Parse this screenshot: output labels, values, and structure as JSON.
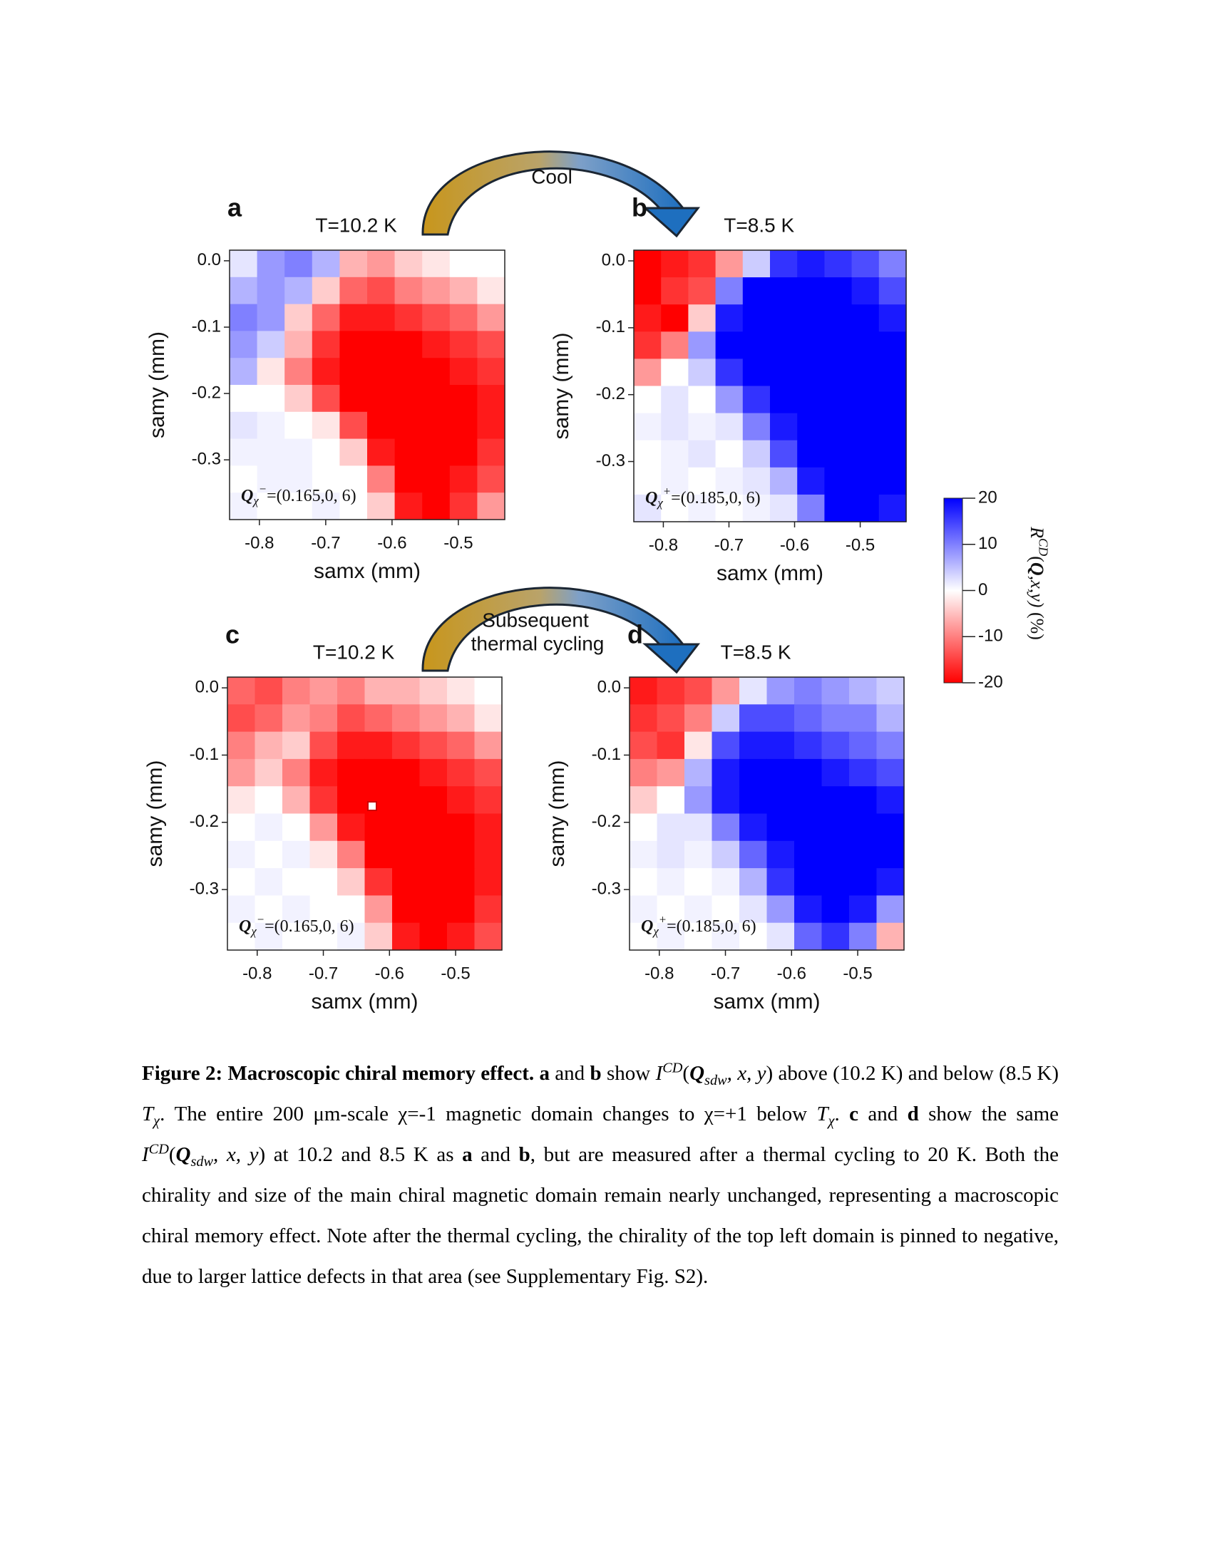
{
  "figure": {
    "panels": [
      {
        "label": "a",
        "title": "T=10.2 K",
        "xlabel": "samx (mm)",
        "ylabel": "samy (mm)",
        "xlim": [
          -0.845,
          -0.43
        ],
        "ylim": [
          -0.39,
          0.016
        ],
        "xticks": [
          -0.8,
          -0.7,
          -0.6,
          -0.5
        ],
        "yticks": [
          {
            "value": 0,
            "label": "0.0"
          },
          -0.1,
          -0.2,
          -0.3
        ],
        "annotation": [
          {
            "t": "Q",
            "f": "bi"
          },
          {
            "t": "χ",
            "f": "sub"
          },
          {
            "t": "−",
            "f": "sup"
          },
          {
            "t": "=(0.165,0, 6)"
          }
        ],
        "grid": [
          [
            2,
            8,
            10,
            6,
            -6,
            -8,
            -4,
            -2,
            0,
            0
          ],
          [
            6,
            8,
            6,
            -4,
            -12,
            -14,
            -10,
            -8,
            -6,
            -2
          ],
          [
            10,
            8,
            -4,
            -12,
            -18,
            -18,
            -16,
            -14,
            -12,
            -8
          ],
          [
            8,
            4,
            -6,
            -16,
            -20,
            -20,
            -20,
            -18,
            -16,
            -14
          ],
          [
            6,
            -2,
            -10,
            -18,
            -20,
            -20,
            -20,
            -20,
            -18,
            -16
          ],
          [
            0,
            0,
            -4,
            -14,
            -20,
            -20,
            -20,
            -20,
            -20,
            -18
          ],
          [
            2,
            1,
            0,
            -2,
            -14,
            -20,
            -20,
            -20,
            -20,
            -18
          ],
          [
            1,
            1,
            1,
            0,
            -4,
            -18,
            -20,
            -20,
            -20,
            -16
          ],
          [
            0,
            1,
            1,
            0,
            0,
            -10,
            -20,
            -20,
            -18,
            -14
          ],
          [
            1,
            0,
            0,
            1,
            0,
            -4,
            -18,
            -20,
            -16,
            -8
          ]
        ]
      },
      {
        "label": "b",
        "title": "T=8.5 K",
        "xlabel": "samx (mm)",
        "ylabel": "samy (mm)",
        "xlim": [
          -0.845,
          -0.43
        ],
        "ylim": [
          -0.39,
          0.016
        ],
        "xticks": [
          -0.8,
          -0.7,
          -0.6,
          -0.5
        ],
        "yticks": [
          {
            "value": 0,
            "label": "0.0"
          },
          -0.1,
          -0.2,
          -0.3
        ],
        "annotation": [
          {
            "t": "Q",
            "f": "bi"
          },
          {
            "t": "χ",
            "f": "sub"
          },
          {
            "t": "+",
            "f": "sup"
          },
          {
            "t": "=(0.185,0, 6)"
          }
        ],
        "grid": [
          [
            -20,
            -18,
            -16,
            -8,
            4,
            16,
            18,
            16,
            14,
            10
          ],
          [
            -20,
            -16,
            -14,
            10,
            20,
            20,
            20,
            20,
            18,
            14
          ],
          [
            -18,
            -20,
            -4,
            18,
            20,
            20,
            20,
            20,
            20,
            18
          ],
          [
            -16,
            -10,
            8,
            20,
            20,
            20,
            20,
            20,
            20,
            20
          ],
          [
            -8,
            0,
            4,
            16,
            20,
            20,
            20,
            20,
            20,
            20
          ],
          [
            0,
            2,
            0,
            8,
            16,
            20,
            20,
            20,
            20,
            20
          ],
          [
            1,
            2,
            1,
            2,
            10,
            18,
            20,
            20,
            20,
            20
          ],
          [
            0,
            1,
            2,
            0,
            4,
            14,
            20,
            20,
            20,
            20
          ],
          [
            0,
            1,
            0,
            1,
            2,
            6,
            18,
            20,
            20,
            20
          ],
          [
            2,
            0,
            1,
            0,
            1,
            2,
            10,
            20,
            20,
            18
          ]
        ]
      },
      {
        "label": "c",
        "title": "T=10.2 K",
        "xlabel": "samx (mm)",
        "ylabel": "samy (mm)",
        "xlim": [
          -0.845,
          -0.43
        ],
        "ylim": [
          -0.39,
          0.016
        ],
        "xticks": [
          -0.8,
          -0.7,
          -0.6,
          -0.5
        ],
        "yticks": [
          {
            "value": 0,
            "label": "0.0"
          },
          -0.1,
          -0.2,
          -0.3
        ],
        "annotation": [
          {
            "t": "Q",
            "f": "bi"
          },
          {
            "t": "χ",
            "f": "sub"
          },
          {
            "t": "−",
            "f": "sup"
          },
          {
            "t": "=(0.165,0, 6)"
          }
        ],
        "grid": [
          [
            -12,
            -14,
            -10,
            -8,
            -10,
            -6,
            -6,
            -4,
            -2,
            0
          ],
          [
            -14,
            -12,
            -8,
            -10,
            -14,
            -12,
            -10,
            -8,
            -6,
            -2
          ],
          [
            -10,
            -6,
            -4,
            -14,
            -18,
            -18,
            -16,
            -14,
            -12,
            -8
          ],
          [
            -8,
            -4,
            -10,
            -18,
            -20,
            -20,
            -20,
            -18,
            -16,
            -14
          ],
          [
            -2,
            0,
            -6,
            -16,
            -20,
            -20,
            -20,
            -20,
            -18,
            -16
          ],
          [
            0,
            1,
            0,
            -8,
            -18,
            -20,
            -20,
            -20,
            -20,
            -18
          ],
          [
            1,
            0,
            1,
            -2,
            -10,
            -20,
            -20,
            -20,
            -20,
            -18
          ],
          [
            0,
            1,
            0,
            0,
            -4,
            -16,
            -20,
            -20,
            -20,
            -18
          ],
          [
            1,
            0,
            1,
            0,
            0,
            -8,
            -20,
            -20,
            -20,
            -16
          ],
          [
            0,
            1,
            0,
            0,
            1,
            -4,
            -18,
            -20,
            -18,
            -14
          ]
        ]
      },
      {
        "label": "d",
        "title": "T=8.5 K",
        "xlabel": "samx (mm)",
        "ylabel": "samy (mm)",
        "xlim": [
          -0.845,
          -0.43
        ],
        "ylim": [
          -0.39,
          0.016
        ],
        "xticks": [
          -0.8,
          -0.7,
          -0.6,
          -0.5
        ],
        "yticks": [
          {
            "value": 0,
            "label": "0.0"
          },
          -0.1,
          -0.2,
          -0.3
        ],
        "annotation": [
          {
            "t": "Q",
            "f": "bi"
          },
          {
            "t": "χ",
            "f": "sub"
          },
          {
            "t": "+",
            "f": "sup"
          },
          {
            "t": "=(0.185,0, 6)"
          }
        ],
        "grid": [
          [
            -18,
            -16,
            -14,
            -8,
            2,
            8,
            10,
            8,
            6,
            4
          ],
          [
            -16,
            -14,
            -10,
            4,
            14,
            14,
            12,
            10,
            10,
            6
          ],
          [
            -14,
            -16,
            -2,
            14,
            18,
            18,
            16,
            14,
            12,
            10
          ],
          [
            -10,
            -8,
            6,
            18,
            20,
            20,
            20,
            18,
            16,
            14
          ],
          [
            -4,
            0,
            8,
            18,
            20,
            20,
            20,
            20,
            20,
            18
          ],
          [
            0,
            2,
            2,
            10,
            18,
            20,
            20,
            20,
            20,
            20
          ],
          [
            1,
            2,
            1,
            4,
            12,
            18,
            20,
            20,
            20,
            20
          ],
          [
            0,
            1,
            0,
            1,
            6,
            16,
            20,
            20,
            20,
            18
          ],
          [
            1,
            0,
            1,
            0,
            2,
            8,
            18,
            20,
            18,
            8
          ],
          [
            0,
            1,
            0,
            1,
            0,
            2,
            12,
            16,
            10,
            -6
          ]
        ]
      }
    ],
    "colorbar": {
      "clim": [
        -20,
        20
      ],
      "colors": [
        "#ff0000",
        "#ffffff",
        "#0000ff"
      ],
      "ticks": [
        20,
        10,
        0,
        -10,
        -20
      ],
      "label": [
        {
          "t": "R",
          "f": "i"
        },
        {
          "t": "CD",
          "f": "sup"
        },
        {
          "t": "("
        },
        {
          "t": "Q",
          "f": "bi"
        },
        {
          "t": ",x,y)",
          "f": "i"
        },
        {
          "t": " (%)"
        }
      ]
    },
    "arrows": [
      {
        "label": [
          "Cool"
        ]
      },
      {
        "label": [
          "Subsequent",
          "thermal cycling"
        ]
      }
    ]
  },
  "caption": [
    {
      "t": "Figure 2: Macroscopic chiral memory effect. a",
      "f": "b"
    },
    {
      "t": " and "
    },
    {
      "t": "b",
      "f": "b"
    },
    {
      "t": " show "
    },
    {
      "t": "I",
      "f": "i"
    },
    {
      "t": "CD",
      "f": "sup"
    },
    {
      "t": "("
    },
    {
      "t": "Q",
      "f": "bi"
    },
    {
      "t": "sdw",
      "f": "sub"
    },
    {
      "t": ", x, y",
      "f": "i"
    },
    {
      "t": ") above (10.2 K) and below (8.5 K) "
    },
    {
      "t": "T",
      "f": "i"
    },
    {
      "t": "χ",
      "f": "sub"
    },
    {
      "t": ". The entire 200 μm-scale χ=-1 magnetic domain changes to χ=+1 below "
    },
    {
      "t": "T",
      "f": "i"
    },
    {
      "t": "χ",
      "f": "sub"
    },
    {
      "t": ". "
    },
    {
      "t": "c",
      "f": "b"
    },
    {
      "t": " and "
    },
    {
      "t": "d",
      "f": "b"
    },
    {
      "t": " show the same "
    },
    {
      "t": "I",
      "f": "i"
    },
    {
      "t": "CD",
      "f": "sup"
    },
    {
      "t": "("
    },
    {
      "t": "Q",
      "f": "bi"
    },
    {
      "t": "sdw",
      "f": "sub"
    },
    {
      "t": ", x, y",
      "f": "i"
    },
    {
      "t": ") at 10.2 and 8.5 K as "
    },
    {
      "t": "a",
      "f": "b"
    },
    {
      "t": " and "
    },
    {
      "t": "b",
      "f": "b"
    },
    {
      "t": ", but are measured after a thermal cycling to 20 K. Both the chirality and size of the main chiral magnetic domain remain nearly unchanged, representing a macroscopic chiral memory effect. Note after the thermal cycling, the chirality of the top left domain is pinned to negative, due to larger lattice defects in that area (see Supplementary Fig. S2)."
    }
  ]
}
